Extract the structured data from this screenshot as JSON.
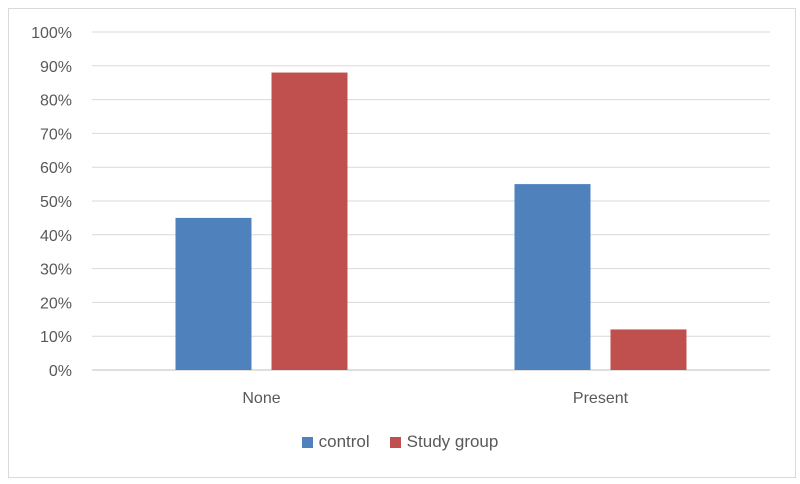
{
  "chart_data": {
    "type": "bar",
    "categories": [
      "None",
      "Present"
    ],
    "series": [
      {
        "name": "control",
        "values": [
          45,
          55
        ],
        "color": "#4f81bd"
      },
      {
        "name": "Study group",
        "values": [
          88,
          12
        ],
        "color": "#c0504d"
      }
    ],
    "ylim": [
      0,
      100
    ],
    "yticks": [
      "0%",
      "10%",
      "20%",
      "30%",
      "40%",
      "50%",
      "60%",
      "70%",
      "80%",
      "90%",
      "100%"
    ],
    "grid": true,
    "legend_position": "bottom"
  }
}
